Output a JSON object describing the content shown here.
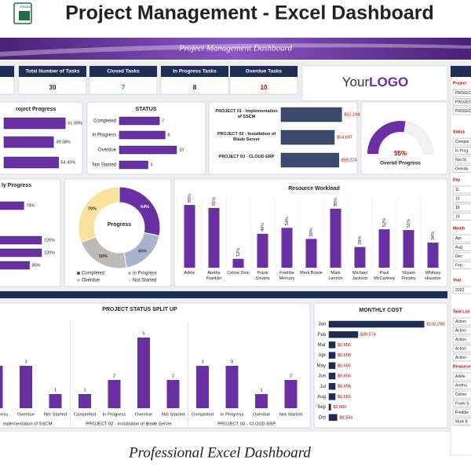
{
  "header": {
    "title": "Project Management - Excel Dashboard",
    "banner": "Project Management Dashboard",
    "footer": "Professional Excel Dashboard",
    "logo": {
      "prefix": "Your",
      "main": "LOGO"
    },
    "icon": "EXCEL"
  },
  "kpis": [
    {
      "label": "Total Number of Tasks",
      "value": 30,
      "color": "#222222"
    },
    {
      "label": "Closed Tasks",
      "value": 7,
      "color": "#2e9e4f"
    },
    {
      "label": "In Progress Tasks",
      "value": 8,
      "color": "#222222"
    },
    {
      "label": "Overdue Tasks",
      "value": 10,
      "color": "#c00000"
    }
  ],
  "slicers": [
    {
      "title": "Project",
      "items": [
        "PROJEC",
        "PROJEC",
        "PROJEC"
      ]
    },
    {
      "title": "Status",
      "items": [
        "Comple",
        "In Prog",
        "Not St",
        "Overdu"
      ]
    },
    {
      "title": "Day",
      "items": [
        "11",
        "13",
        "15",
        "19"
      ]
    },
    {
      "title": "Month",
      "items": [
        "Apr",
        "Aug",
        "Dec",
        "Feb"
      ]
    },
    {
      "title": "Year",
      "items": [
        "2022"
      ]
    },
    {
      "title": "Task List",
      "items": [
        "Action",
        "Action",
        "Action",
        "Action",
        "Action"
      ]
    },
    {
      "title": "Resource",
      "items": [
        "Adele",
        "Aretha",
        "Celine",
        "Frank S",
        "Freddie",
        "Mark B"
      ]
    }
  ],
  "chart_data": [
    {
      "type": "hbar",
      "title": "roject Progress",
      "values": [
        61.09,
        49.38,
        54.4
      ],
      "value_labels": [
        "61.09%",
        "49.38%",
        "54.40%"
      ],
      "xlim": [
        0,
        100
      ],
      "color": "#6a2fa3",
      "label_color": "#222222"
    },
    {
      "type": "hbar",
      "title": "STATUS",
      "categories": [
        "Completed",
        "In Progress",
        "Overdue",
        "Not Started"
      ],
      "values": [
        7,
        8,
        10,
        5
      ],
      "xlim": [
        0,
        10
      ],
      "color": "#6a2fa3",
      "label_color": "#222222"
    },
    {
      "type": "hbar",
      "categories": [
        "PROJECT 01 - Implementation of SSCM",
        "PROJECT 02 - Installation of Blade Server",
        "PROJECT 03 - CLOUD ERP"
      ],
      "values": [
        62194,
        54697,
        59274
      ],
      "value_labels": [
        "$62,194",
        "$54,697",
        "$59,274"
      ],
      "xlim": [
        0,
        70000
      ],
      "color": "#3d4a6b",
      "label_color": "#c00000"
    },
    {
      "type": "gauge",
      "value": 55,
      "value_label": "55%",
      "label": "Overall Progress",
      "ylim": [
        0,
        100
      ],
      "color": "#6a2fa3"
    },
    {
      "type": "hbar",
      "title": "ly Progress",
      "values": [
        78,
        100,
        100,
        85
      ],
      "value_labels": [
        "78%",
        "100%",
        "100%",
        "85%"
      ],
      "xlim": [
        0,
        100
      ],
      "color": "#6a2fa3",
      "label_color": "#222222"
    },
    {
      "type": "pie",
      "title": "Progress",
      "categories": [
        "Completed",
        "In Progress",
        "Overdue",
        "Not Started"
      ],
      "values": [
        64,
        43,
        50,
        70
      ],
      "value_labels": [
        "64%",
        "43%",
        "50%",
        "70%"
      ],
      "colors": [
        "#6a2fa3",
        "#a9b4cc",
        "#bdb9b6",
        "#f8e29c"
      ]
    },
    {
      "type": "bar",
      "title": "Resource Workload",
      "categories": [
        "Adele",
        "Aretha Franklin",
        "Celine Dion",
        "Frank Sinatra",
        "Freddie Mercury",
        "Mark Bowie",
        "Mark Lannon",
        "Michael Jackson",
        "Paul McCartney",
        "Shyam Presley",
        "Whitney Houston"
      ],
      "values": [
        85,
        81,
        12,
        46,
        54,
        39,
        80,
        28,
        52,
        51,
        34
      ],
      "value_labels": [
        "85%",
        "81%",
        "12%",
        "46%",
        "54%",
        "39%",
        "80%",
        "28%",
        "52%",
        "51%",
        "34%"
      ],
      "ylim": [
        0,
        100
      ],
      "color": "#6a2fa3"
    },
    {
      "type": "grouped_bar",
      "title": "PROJECT STATUS SPLIT UP",
      "groups": [
        {
          "name": "mplementation of SSCM",
          "categories": [
            "In Progress",
            "Overdue",
            "Not Started"
          ],
          "values": [
            3,
            3,
            1
          ]
        },
        {
          "name": "PROJECT 02 - Installation of Blade Server",
          "categories": [
            "Completed",
            "In Progress",
            "Overdue",
            "Not Started"
          ],
          "values": [
            1,
            2,
            5,
            2
          ]
        },
        {
          "name": "PROJECT 03 - CLOUD ERP",
          "categories": [
            "Completed",
            "In Progress",
            "Overdue",
            "Not Started"
          ],
          "values": [
            3,
            3,
            1,
            2
          ]
        }
      ],
      "ylim": [
        0,
        5
      ],
      "color": "#6a2fa3"
    },
    {
      "type": "hbar",
      "title": "MONTHLY COST",
      "categories": [
        "Jan",
        "Feb",
        "Mar",
        "Apr",
        "May",
        "Jun",
        "Jul",
        "Aug",
        "Sep",
        "Oct"
      ],
      "values": [
        100290,
        30574,
        6656,
        6656,
        6656,
        6656,
        6656,
        6656,
        2000,
        8594
      ],
      "value_labels": [
        "$100,290",
        "$30,574",
        "$6,656",
        "$6,656",
        "$6,656",
        "$6,656",
        "$6,656",
        "$6,656",
        "$2,000",
        "$8,594"
      ],
      "xlim": [
        0,
        110000
      ],
      "color": "#1f2d54",
      "label_color": "#c00000"
    }
  ]
}
